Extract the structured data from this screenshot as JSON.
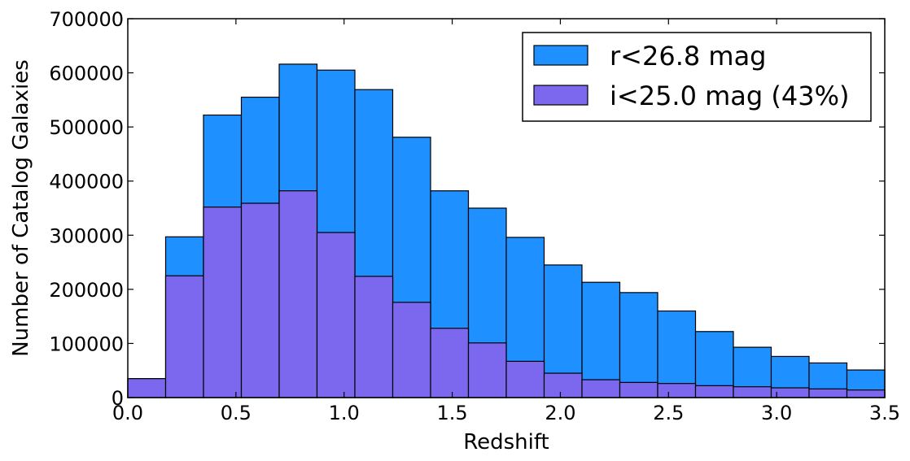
{
  "chart_data": {
    "type": "bar",
    "xlabel": "Redshift",
    "ylabel": "Number of Catalog Galaxies",
    "xlim": [
      0.0,
      3.5
    ],
    "ylim": [
      0,
      700000
    ],
    "x_ticks": [
      "0.0",
      "0.5",
      "1.0",
      "1.5",
      "2.0",
      "2.5",
      "3.0",
      "3.5"
    ],
    "y_ticks": [
      "0",
      "100000",
      "200000",
      "300000",
      "400000",
      "500000",
      "600000",
      "700000"
    ],
    "bin_edges": [
      0.0,
      0.175,
      0.35,
      0.525,
      0.7,
      0.875,
      1.05,
      1.225,
      1.4,
      1.575,
      1.75,
      1.925,
      2.1,
      2.275,
      2.45,
      2.625,
      2.8,
      2.975,
      3.15,
      3.325,
      3.5
    ],
    "legend_position": "top-right",
    "grid": false,
    "series": [
      {
        "name": "r<26.8 mag",
        "color": "#1e90ff",
        "values": [
          35000,
          297000,
          522000,
          555000,
          616000,
          605000,
          569000,
          481000,
          382000,
          350000,
          296000,
          245000,
          213000,
          194000,
          160000,
          122000,
          93000,
          76000,
          64000,
          51000
        ]
      },
      {
        "name": "i<25.0 mag (43%)",
        "color": "#7b68ee",
        "values": [
          35000,
          225000,
          352000,
          359000,
          382000,
          305000,
          224000,
          176000,
          128000,
          101000,
          67000,
          45000,
          33000,
          28000,
          26000,
          22000,
          20000,
          18000,
          16000,
          14000
        ]
      }
    ]
  }
}
